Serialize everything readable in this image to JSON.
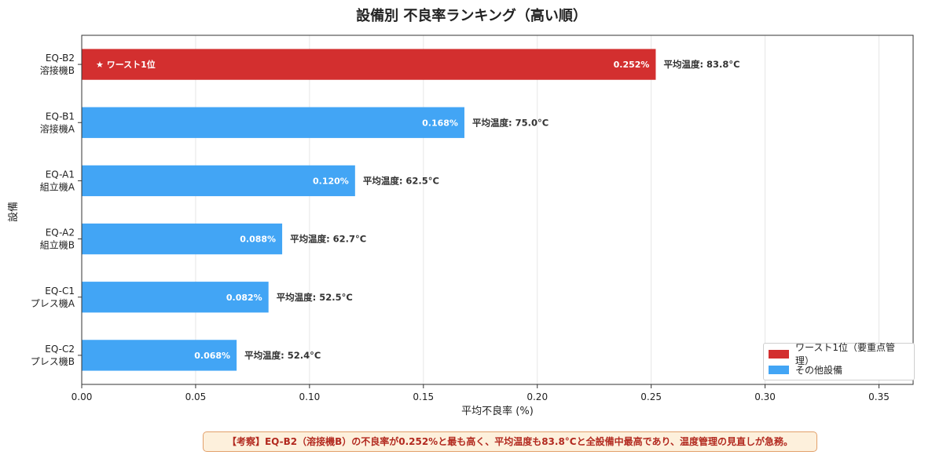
{
  "chart_data": {
    "type": "bar",
    "orientation": "horizontal",
    "title": "設備別 不良率ランキング（高い順）",
    "xlabel": "平均不良率 (%)",
    "ylabel": "設備",
    "xlim": [
      0,
      0.365
    ],
    "xticks": [
      "0.00",
      "0.05",
      "0.10",
      "0.15",
      "0.20",
      "0.25",
      "0.30",
      "0.35"
    ],
    "xtick_values": [
      0,
      0.05,
      0.1,
      0.15,
      0.2,
      0.25,
      0.3,
      0.35
    ],
    "grid": "vertical",
    "legend_position": "lower-right",
    "categories": [
      {
        "code": "EQ-B2",
        "name": "溶接機B"
      },
      {
        "code": "EQ-B1",
        "name": "溶接機A"
      },
      {
        "code": "EQ-A1",
        "name": "組立機A"
      },
      {
        "code": "EQ-A2",
        "name": "組立機B"
      },
      {
        "code": "EQ-C1",
        "name": "プレス機A"
      },
      {
        "code": "EQ-C2",
        "name": "プレス機B"
      }
    ],
    "values": [
      0.252,
      0.168,
      0.12,
      0.088,
      0.082,
      0.068
    ],
    "value_labels": [
      "0.252%",
      "0.168%",
      "0.120%",
      "0.088%",
      "0.082%",
      "0.068%"
    ],
    "temp_labels": [
      "平均温度: 83.8°C",
      "平均温度: 75.0°C",
      "平均温度: 62.5°C",
      "平均温度: 62.7°C",
      "平均温度: 52.5°C",
      "平均温度: 52.4°C"
    ],
    "highlight_index": 0,
    "highlight_label": "★ ワースト1位",
    "colors": {
      "worst": "#d32f2f",
      "other": "#42a5f5"
    },
    "legend": [
      {
        "label": "ワースト1位（要重点管理）",
        "color": "#d32f2f"
      },
      {
        "label": "その他設備",
        "color": "#42a5f5"
      }
    ]
  },
  "note": "【考察】EQ-B2（溶接機B）の不良率が0.252%と最も高く、平均温度も83.8°Cと全設備中最高であり、温度管理の見直しが急務。"
}
